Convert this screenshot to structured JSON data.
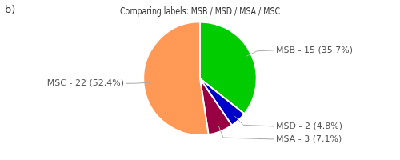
{
  "chart_data": {
    "type": "pie",
    "title": "Comparing labels: MSB / MSD / MSA / MSC",
    "categories": [
      "MSB - 15 (35.7%)",
      "MSD - 2 (4.8%)",
      "MSA - 3 (7.1%)",
      "MSC - 22 (52.4%)"
    ],
    "values": [
      15,
      2,
      3,
      22
    ],
    "colors": [
      "#00cc00",
      "#0000cc",
      "#990044",
      "#ff9955"
    ],
    "annotations": [
      "b)"
    ],
    "legend": false
  }
}
